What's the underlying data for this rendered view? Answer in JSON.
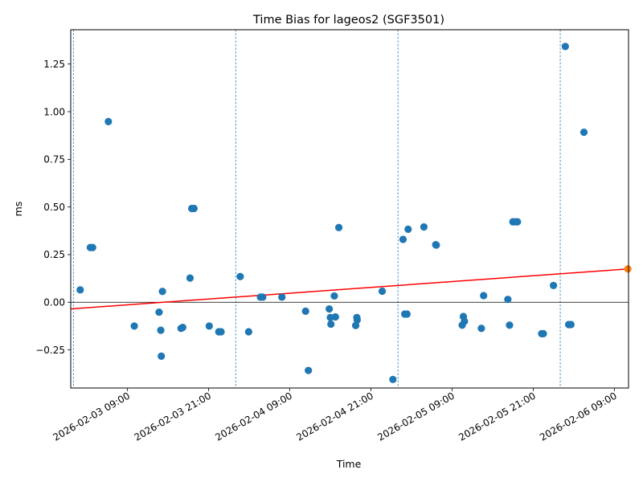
{
  "chart_data": {
    "type": "scatter",
    "title": "Time Bias for lageos2 (SGF3501)",
    "xlabel": "Time",
    "ylabel": "ms",
    "xlim": [
      "2026-02-03T00:36",
      "2026-02-06T11:06"
    ],
    "ylim": [
      -0.45,
      1.43
    ],
    "x_ticks": [
      {
        "t": "2026-02-03T09:00",
        "label": "2026-02-03 09:00"
      },
      {
        "t": "2026-02-03T21:00",
        "label": "2026-02-03 21:00"
      },
      {
        "t": "2026-02-04T09:00",
        "label": "2026-02-04 09:00"
      },
      {
        "t": "2026-02-04T21:00",
        "label": "2026-02-04 21:00"
      },
      {
        "t": "2026-02-05T09:00",
        "label": "2026-02-05 09:00"
      },
      {
        "t": "2026-02-05T21:00",
        "label": "2026-02-05 21:00"
      },
      {
        "t": "2026-02-06T09:00",
        "label": "2026-02-06 09:00"
      }
    ],
    "y_ticks": [
      {
        "v": -0.25,
        "label": "−0.25"
      },
      {
        "v": 0.0,
        "label": "0.00"
      },
      {
        "v": 0.25,
        "label": "0.25"
      },
      {
        "v": 0.5,
        "label": "0.50"
      },
      {
        "v": 0.75,
        "label": "0.75"
      },
      {
        "v": 1.0,
        "label": "1.00"
      },
      {
        "v": 1.25,
        "label": "1.25"
      }
    ],
    "day_boundaries": [
      "2026-02-03T01:00",
      "2026-02-04T01:00",
      "2026-02-05T01:00",
      "2026-02-06T01:00"
    ],
    "zero_line": 0,
    "trend_line": {
      "color": "#ff0000",
      "from": {
        "t": "2026-02-03T00:36",
        "y": -0.035
      },
      "to": {
        "t": "2026-02-06T11:06",
        "y": 0.175
      }
    },
    "series": [
      {
        "color": "#1f77b4",
        "points": [
          {
            "t": "2026-02-03T02:00",
            "y": 0.065
          },
          {
            "t": "2026-02-03T03:30",
            "y": 0.287
          },
          {
            "t": "2026-02-03T03:50",
            "y": 0.287
          },
          {
            "t": "2026-02-03T06:10",
            "y": 0.948
          },
          {
            "t": "2026-02-03T10:00",
            "y": -0.125
          },
          {
            "t": "2026-02-03T13:40",
            "y": -0.052
          },
          {
            "t": "2026-02-03T13:55",
            "y": -0.147
          },
          {
            "t": "2026-02-03T14:00",
            "y": -0.283
          },
          {
            "t": "2026-02-03T14:10",
            "y": 0.057
          },
          {
            "t": "2026-02-03T16:55",
            "y": -0.137
          },
          {
            "t": "2026-02-03T17:10",
            "y": -0.132
          },
          {
            "t": "2026-02-03T18:15",
            "y": 0.127
          },
          {
            "t": "2026-02-03T18:30",
            "y": 0.492
          },
          {
            "t": "2026-02-03T18:50",
            "y": 0.492
          },
          {
            "t": "2026-02-03T21:05",
            "y": -0.125
          },
          {
            "t": "2026-02-03T22:30",
            "y": -0.155
          },
          {
            "t": "2026-02-03T22:50",
            "y": -0.155
          },
          {
            "t": "2026-02-04T01:40",
            "y": 0.135
          },
          {
            "t": "2026-02-04T02:55",
            "y": -0.155
          },
          {
            "t": "2026-02-04T04:40",
            "y": 0.027
          },
          {
            "t": "2026-02-04T05:00",
            "y": 0.027
          },
          {
            "t": "2026-02-04T07:50",
            "y": 0.027
          },
          {
            "t": "2026-02-04T11:20",
            "y": -0.047
          },
          {
            "t": "2026-02-04T11:45",
            "y": -0.358
          },
          {
            "t": "2026-02-04T14:50",
            "y": -0.035
          },
          {
            "t": "2026-02-04T15:00",
            "y": -0.08
          },
          {
            "t": "2026-02-04T15:05",
            "y": -0.115
          },
          {
            "t": "2026-02-04T15:45",
            "y": -0.077
          },
          {
            "t": "2026-02-04T15:35",
            "y": 0.033
          },
          {
            "t": "2026-02-04T16:15",
            "y": 0.392
          },
          {
            "t": "2026-02-04T18:45",
            "y": -0.122
          },
          {
            "t": "2026-02-04T18:55",
            "y": -0.08
          },
          {
            "t": "2026-02-04T18:58",
            "y": -0.093
          },
          {
            "t": "2026-02-04T22:40",
            "y": 0.058
          },
          {
            "t": "2026-02-05T00:15",
            "y": -0.405
          },
          {
            "t": "2026-02-05T01:45",
            "y": 0.33
          },
          {
            "t": "2026-02-05T02:00",
            "y": -0.062
          },
          {
            "t": "2026-02-05T02:20",
            "y": -0.062
          },
          {
            "t": "2026-02-05T02:30",
            "y": 0.383
          },
          {
            "t": "2026-02-05T04:50",
            "y": 0.395
          },
          {
            "t": "2026-02-05T06:35",
            "y": 0.302
          },
          {
            "t": "2026-02-05T06:40",
            "y": 0.3
          },
          {
            "t": "2026-02-05T10:30",
            "y": -0.12
          },
          {
            "t": "2026-02-05T10:40",
            "y": -0.075
          },
          {
            "t": "2026-02-05T10:50",
            "y": -0.1
          },
          {
            "t": "2026-02-05T13:20",
            "y": -0.137
          },
          {
            "t": "2026-02-05T13:40",
            "y": 0.035
          },
          {
            "t": "2026-02-05T17:15",
            "y": 0.015
          },
          {
            "t": "2026-02-05T17:30",
            "y": -0.12
          },
          {
            "t": "2026-02-05T18:00",
            "y": 0.422
          },
          {
            "t": "2026-02-05T18:20",
            "y": 0.422
          },
          {
            "t": "2026-02-05T18:40",
            "y": 0.422
          },
          {
            "t": "2026-02-05T22:15",
            "y": -0.165
          },
          {
            "t": "2026-02-05T22:30",
            "y": -0.165
          },
          {
            "t": "2026-02-06T00:00",
            "y": 0.088
          },
          {
            "t": "2026-02-06T01:45",
            "y": 1.342
          },
          {
            "t": "2026-02-06T02:15",
            "y": -0.117
          },
          {
            "t": "2026-02-06T02:35",
            "y": -0.117
          },
          {
            "t": "2026-02-06T04:30",
            "y": 0.892
          }
        ]
      },
      {
        "color": "#ff7f0e",
        "points": [
          {
            "t": "2026-02-06T11:00",
            "y": 0.175
          }
        ]
      }
    ],
    "grid": false,
    "legend": "none"
  }
}
